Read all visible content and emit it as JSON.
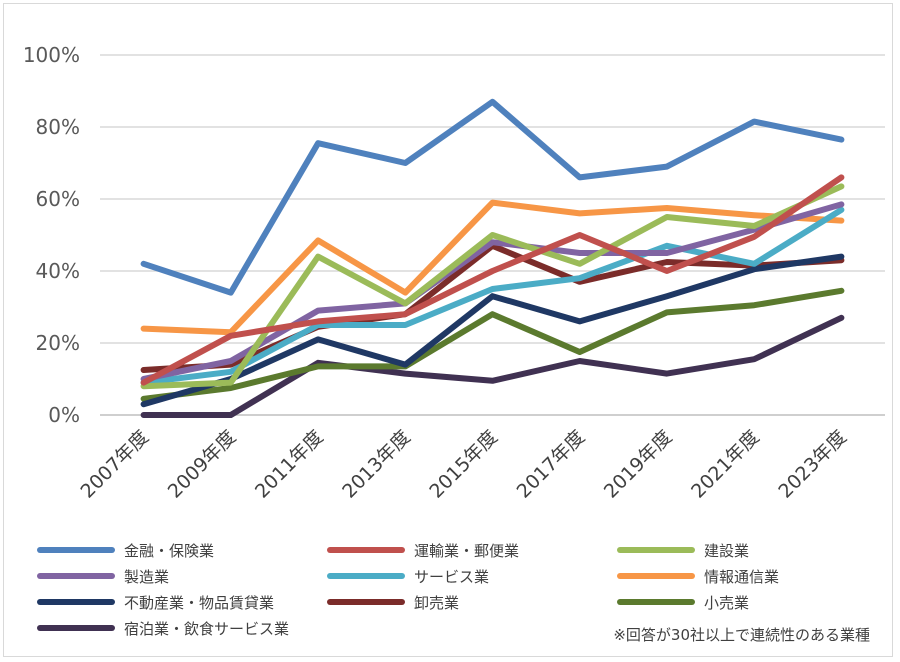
{
  "chart_data": {
    "type": "line",
    "categories": [
      "2007年度",
      "2009年度",
      "2011年度",
      "2013年度",
      "2015年度",
      "2017年度",
      "2019年度",
      "2021年度",
      "2023年度"
    ],
    "ylim": [
      0,
      100
    ],
    "yticks": [
      "0%",
      "20%",
      "40%",
      "60%",
      "80%",
      "100%"
    ],
    "grid": true,
    "legend_position": "bottom",
    "series": [
      {
        "name": "金融・保険業",
        "color": "#4f81bd",
        "values": [
          42,
          34,
          75.5,
          70,
          87,
          66,
          69,
          81.5,
          76.5
        ]
      },
      {
        "name": "運輸業・郵便業",
        "color": "#c0504d",
        "values": [
          9,
          22,
          26,
          28,
          40,
          50,
          40,
          49.5,
          66
        ]
      },
      {
        "name": "建設業",
        "color": "#9bbb59",
        "values": [
          8,
          9,
          44,
          31,
          50,
          42,
          55,
          52.5,
          63.5
        ]
      },
      {
        "name": "製造業",
        "color": "#8064a2",
        "values": [
          10,
          15,
          29,
          31,
          48,
          45,
          45,
          51.5,
          58.5
        ]
      },
      {
        "name": "サービス業",
        "color": "#4bacc6",
        "values": [
          9,
          12,
          25,
          25,
          35,
          38,
          47,
          42,
          57
        ]
      },
      {
        "name": "情報通信業",
        "color": "#f79646",
        "values": [
          24,
          23,
          48.5,
          34,
          59,
          56,
          57.5,
          55.5,
          54
        ]
      },
      {
        "name": "不動産業・物品賃貸業",
        "color": "#1f3864",
        "values": [
          3,
          10,
          21,
          14,
          33,
          26,
          33,
          40.5,
          44
        ]
      },
      {
        "name": "卸売業",
        "color": "#7b2c2a",
        "values": [
          12.5,
          14,
          24.5,
          28,
          47,
          37,
          42.5,
          41.5,
          43
        ]
      },
      {
        "name": "小売業",
        "color": "#5b7a2e",
        "values": [
          4.5,
          7.5,
          13.5,
          13.5,
          28,
          17.5,
          28.5,
          30.5,
          34.5
        ]
      },
      {
        "name": "宿泊業・飲食サービス業",
        "color": "#403152",
        "values": [
          0,
          0,
          14.5,
          11.5,
          9.5,
          15,
          11.5,
          15.5,
          27
        ]
      }
    ],
    "note": "※回答が30社以上で連続性のある業種"
  }
}
